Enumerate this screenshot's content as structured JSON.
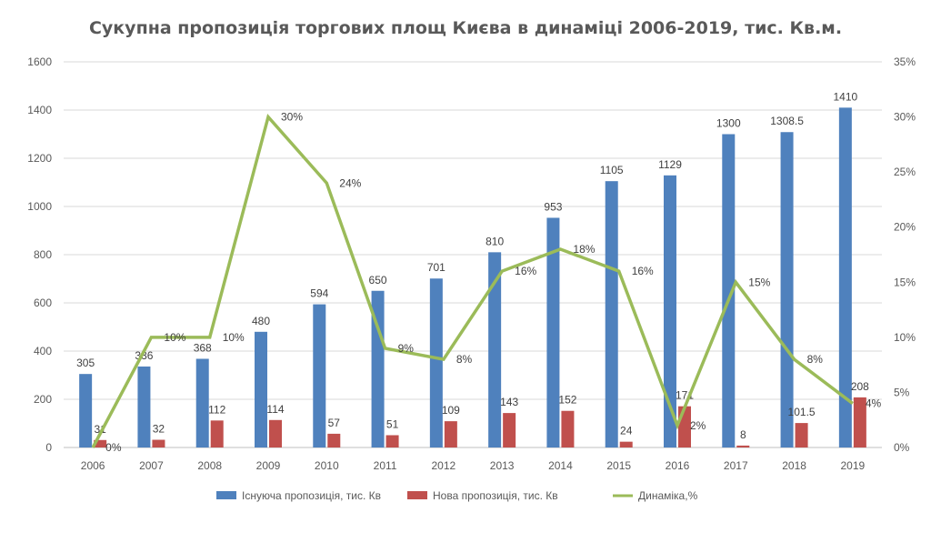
{
  "chart_data": {
    "type": "bar",
    "title": "Сукупна пропозиція торгових площ Києва в динаміці 2006-2019, тис. Кв.м.",
    "categories": [
      "2006",
      "2007",
      "2008",
      "2009",
      "2010",
      "2011",
      "2012",
      "2013",
      "2014",
      "2015",
      "2016",
      "2017",
      "2018",
      "2019"
    ],
    "series": [
      {
        "name": "Існуюча пропозиція, тис. Кв",
        "type": "bar",
        "axis": "left",
        "color": "#4f81bd",
        "values": [
          305,
          336,
          368,
          480,
          594,
          650,
          701,
          810,
          953,
          1105,
          1129,
          1300,
          1308.5,
          1410
        ],
        "labels": [
          "305",
          "336",
          "368",
          "480",
          "594",
          "650",
          "701",
          "810",
          "953",
          "1105",
          "1129",
          "1300",
          "1308.5",
          "1410"
        ]
      },
      {
        "name": "Нова пропозиція, тис. Кв",
        "type": "bar",
        "axis": "left",
        "color": "#c0504d",
        "values": [
          31,
          32,
          112,
          114,
          57,
          51,
          109,
          143,
          152,
          24,
          171,
          8,
          101.5,
          208
        ],
        "labels": [
          "31",
          "32",
          "112",
          "114",
          "57",
          "51",
          "109",
          "143",
          "152",
          "24",
          "171",
          "8",
          "101.5",
          "208"
        ]
      },
      {
        "name": "Динаміка,%",
        "type": "line",
        "axis": "right",
        "color": "#9bbb59",
        "values": [
          0,
          10,
          10,
          30,
          24,
          9,
          8,
          16,
          18,
          16,
          2,
          15,
          8,
          4
        ],
        "labels": [
          "0%",
          "10%",
          "10%",
          "30%",
          "24%",
          "9%",
          "8%",
          "16%",
          "18%",
          "16%",
          "2%",
          "15%",
          "8%",
          "4%"
        ]
      }
    ],
    "y_left": {
      "min": 0,
      "max": 1600,
      "step": 200,
      "ticks": [
        "0",
        "200",
        "400",
        "600",
        "800",
        "1000",
        "1200",
        "1400",
        "1600"
      ]
    },
    "y_right": {
      "min": 0,
      "max": 35,
      "step": 5,
      "ticks": [
        "0%",
        "5%",
        "10%",
        "15%",
        "20%",
        "25%",
        "30%",
        "35%"
      ]
    },
    "grid": true,
    "legend_position": "bottom"
  }
}
